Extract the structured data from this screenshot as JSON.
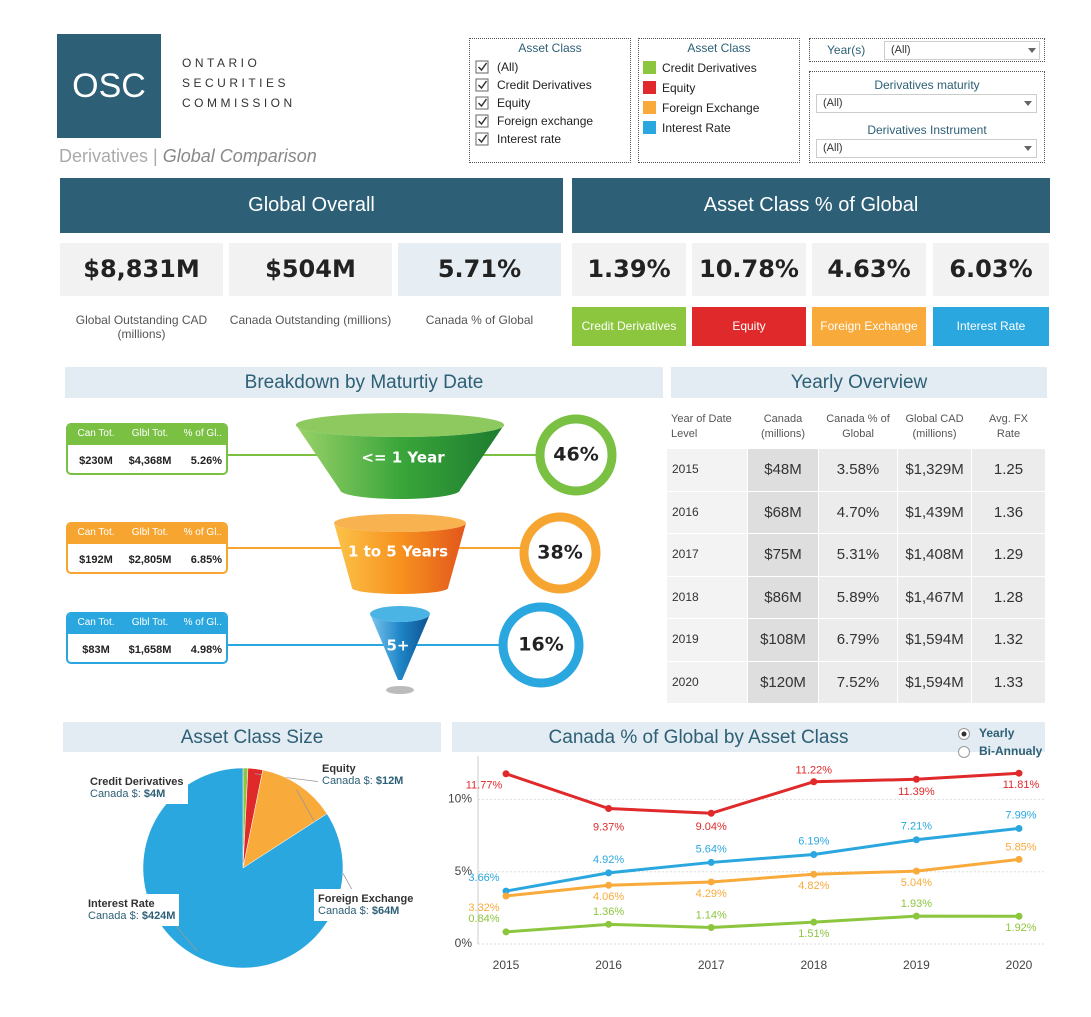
{
  "header": {
    "logo": "OSC",
    "org_lines": [
      "ONTARIO",
      "SECURITIES",
      "COMMISSION"
    ],
    "section": "Derivatives",
    "separator": "|",
    "page": "Global Comparison"
  },
  "filters": {
    "checklist": {
      "title": "Asset Class",
      "items": [
        "(All)",
        "Credit Derivatives",
        "Equity",
        "Foreign exchange",
        "Interest rate"
      ]
    },
    "legend": {
      "title": "Asset Class",
      "items": [
        {
          "name": "Credit Derivatives",
          "color": "#8cc63e"
        },
        {
          "name": "Equity",
          "color": "#e0292b"
        },
        {
          "name": "Foreign Exchange",
          "color": "#f8aa3b"
        },
        {
          "name": "Interest Rate",
          "color": "#2aa7df"
        }
      ]
    },
    "years": {
      "label": "Year(s)",
      "value": "(All)"
    },
    "maturity": {
      "label": "Derivatives maturity",
      "value": "(All)"
    },
    "instrument": {
      "label": "Derivatives Instrument",
      "value": "(All)"
    }
  },
  "global_overall": {
    "title": "Global Overall",
    "kpis": [
      {
        "value": "$8,831M",
        "label": "Global Outstanding CAD (millions)"
      },
      {
        "value": "$504M",
        "label": "Canada Outstanding (millions)"
      },
      {
        "value": "5.71%",
        "label": "Canada % of Global"
      }
    ]
  },
  "asset_class_share": {
    "title": "Asset Class % of Global",
    "kpis": [
      {
        "value": "1.39%",
        "label": "Credit Derivatives",
        "color": "#8cc63e"
      },
      {
        "value": "10.78%",
        "label": "Equity",
        "color": "#e0292b"
      },
      {
        "value": "4.63%",
        "label": "Foreign Exchange",
        "color": "#f8aa3b"
      },
      {
        "value": "6.03%",
        "label": "Interest Rate",
        "color": "#2aa7df"
      }
    ]
  },
  "maturity_breakdown": {
    "title": "Breakdown by Maturtiy Date",
    "columns": [
      "Can Tot.",
      "Glbl Tot.",
      "% of Gl.."
    ],
    "rows": [
      {
        "label": "<= 1 Year",
        "cells": [
          "$230M",
          "$4,368M",
          "5.26%"
        ],
        "share": "46%",
        "color": "#79c043"
      },
      {
        "label": "1 to 5 Years",
        "cells": [
          "$192M",
          "$2,805M",
          "6.85%"
        ],
        "share": "38%",
        "color": "#f7a531"
      },
      {
        "label": "5+",
        "cells": [
          "$83M",
          "$1,658M",
          "4.98%"
        ],
        "share": "16%",
        "color": "#2aa7df"
      }
    ]
  },
  "yearly_overview": {
    "title": "Yearly Overview",
    "columns": [
      "Year of Date Level",
      "Canada (millions)",
      "Canada % of Global",
      "Global CAD (millions)",
      "Avg. FX Rate"
    ],
    "rows": [
      [
        "2015",
        "$48M",
        "3.58%",
        "$1,329M",
        "1.25"
      ],
      [
        "2016",
        "$68M",
        "4.70%",
        "$1,439M",
        "1.36"
      ],
      [
        "2017",
        "$75M",
        "5.31%",
        "$1,408M",
        "1.29"
      ],
      [
        "2018",
        "$86M",
        "5.89%",
        "$1,467M",
        "1.28"
      ],
      [
        "2019",
        "$108M",
        "6.79%",
        "$1,594M",
        "1.32"
      ],
      [
        "2020",
        "$120M",
        "7.52%",
        "$1,594M",
        "1.33"
      ]
    ]
  },
  "chart_data": [
    {
      "type": "pie",
      "title": "Asset Class Size",
      "value_caption": "Canada $:",
      "categories": [
        "Credit Derivatives",
        "Equity",
        "Foreign Exchange",
        "Interest Rate"
      ],
      "values": [
        4,
        12,
        64,
        424
      ],
      "value_labels": [
        "$4M",
        "$12M",
        "$64M",
        "$424M"
      ],
      "colors": [
        "#8cc63e",
        "#e0292b",
        "#f8aa3b",
        "#2aa7df"
      ]
    },
    {
      "type": "line",
      "title": "Canada % of Global by Asset Class",
      "categories": [
        "2015",
        "2016",
        "2017",
        "2018",
        "2019",
        "2020"
      ],
      "series": [
        {
          "color": "#e0292b",
          "values": [
            11.77,
            9.37,
            9.04,
            11.22,
            11.39,
            11.81
          ],
          "value_labels": [
            "11.77%",
            "9.37%",
            "9.04%",
            "11.22%",
            "11.39%",
            "11.81%"
          ]
        },
        {
          "color": "#2aa7df",
          "values": [
            3.66,
            4.92,
            5.64,
            6.19,
            7.21,
            7.99
          ],
          "value_labels": [
            "3.66%",
            "4.92%",
            "5.64%",
            "6.19%",
            "7.21%",
            "7.99%"
          ]
        },
        {
          "color": "#f8aa3b",
          "values": [
            3.32,
            4.06,
            4.29,
            4.82,
            5.04,
            5.85
          ],
          "value_labels": [
            "3.32%",
            "4.06%",
            "4.29%",
            "4.82%",
            "5.04%",
            "5.85%"
          ]
        },
        {
          "color": "#8cc63e",
          "values": [
            0.84,
            1.36,
            1.14,
            1.51,
            1.93,
            1.92
          ],
          "value_labels": [
            "0.84%",
            "1.36%",
            "1.14%",
            "1.51%",
            "1.93%",
            "1.92%"
          ]
        }
      ],
      "ylim": [
        0,
        13
      ],
      "yticks": [
        {
          "value": 0,
          "label": "0%"
        },
        {
          "value": 5,
          "label": "5%"
        },
        {
          "value": 10,
          "label": "10%"
        }
      ],
      "grid": true,
      "options": [
        "Yearly",
        "Bi-Annualy"
      ],
      "selected": "Yearly"
    }
  ]
}
